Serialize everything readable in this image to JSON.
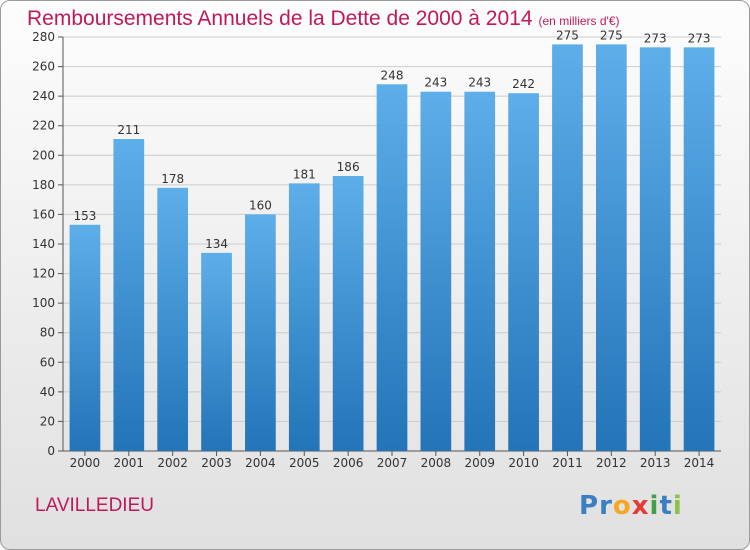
{
  "chart_data": {
    "type": "bar",
    "title": "Remboursements Annuels de la Dette de 2000 à 2014",
    "subtitle": "(en milliers d'€)",
    "categories": [
      "2000",
      "2001",
      "2002",
      "2003",
      "2004",
      "2005",
      "2006",
      "2007",
      "2008",
      "2009",
      "2010",
      "2011",
      "2012",
      "2013",
      "2014"
    ],
    "values": [
      153,
      211,
      178,
      134,
      160,
      181,
      186,
      248,
      243,
      243,
      242,
      275,
      275,
      273,
      273
    ],
    "ylim": [
      0,
      280
    ],
    "yticks": [
      0,
      20,
      40,
      60,
      80,
      100,
      120,
      140,
      160,
      180,
      200,
      220,
      240,
      260,
      280
    ],
    "grid": true,
    "xlabel": "",
    "ylabel": ""
  },
  "colors": {
    "bar_top": "#5daee9",
    "bar_bottom": "#2374b8",
    "title": "#c2185b",
    "grid": "#cccccc"
  },
  "footer": {
    "commune": "LAVILLEDIEU",
    "logo_letters": [
      {
        "char": "P",
        "color": "#3a7fc1"
      },
      {
        "char": "r",
        "color": "#3a7fc1"
      },
      {
        "char": "o",
        "color": "#f5a623"
      },
      {
        "char": "x",
        "color": "#e53935"
      },
      {
        "char": "i",
        "color": "#43a047"
      },
      {
        "char": "t",
        "color": "#3a7fc1"
      },
      {
        "char": "i",
        "color": "#8bc34a"
      }
    ]
  }
}
